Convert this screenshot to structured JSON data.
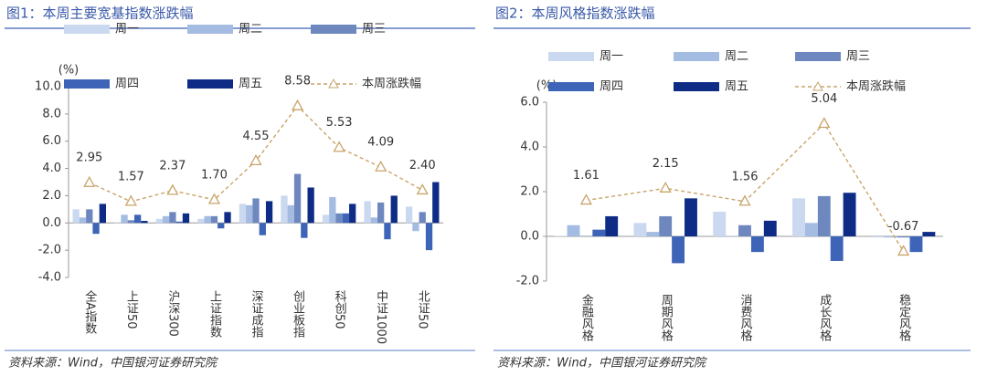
{
  "chart_data": [
    {
      "type": "bar",
      "title": "图1：本周主要宽基指数涨跌幅",
      "ylabel": "(%)",
      "source": "资料来源：Wind，中国银河证券研究院",
      "categories": [
        "全A指数",
        "上证50",
        "沪深300",
        "上证指数",
        "深证成指",
        "创业板指",
        "科创50",
        "中证1000",
        "北证50"
      ],
      "ylim": [
        -4,
        10
      ],
      "yticks": [
        {
          "value": -4,
          "label": "-4.0"
        },
        {
          "value": -2,
          "label": "-2.0"
        },
        {
          "value": 0,
          "label": "0.0"
        },
        {
          "value": 2,
          "label": "2.0"
        },
        {
          "value": 4,
          "label": "4.0"
        },
        {
          "value": 6,
          "label": "6.0"
        },
        {
          "value": 8,
          "label": "8.0"
        },
        {
          "value": 10,
          "label": "10.0"
        }
      ],
      "series": [
        {
          "name": "周一",
          "color": "#cad8f0",
          "values": [
            1.0,
            0.05,
            0.3,
            0.3,
            1.4,
            2.0,
            0.6,
            1.6,
            1.2
          ]
        },
        {
          "name": "周二",
          "color": "#a4bbe2",
          "values": [
            0.4,
            0.6,
            0.5,
            0.5,
            1.3,
            1.3,
            1.9,
            0.4,
            -0.6
          ]
        },
        {
          "name": "周三",
          "color": "#6e88bf",
          "values": [
            1.0,
            0.2,
            0.8,
            0.5,
            1.8,
            3.6,
            0.7,
            1.5,
            0.8
          ]
        },
        {
          "name": "周四",
          "color": "#3d64b6",
          "values": [
            -0.8,
            0.6,
            0.1,
            -0.4,
            -0.9,
            -1.1,
            0.7,
            -1.2,
            -2.0
          ]
        },
        {
          "name": "周五",
          "color": "#0e2c86",
          "values": [
            1.4,
            0.15,
            0.7,
            0.8,
            1.6,
            2.6,
            1.4,
            2.0,
            3.0
          ]
        },
        {
          "name": "本周涨跌幅",
          "type": "line",
          "color": "#c9a46a",
          "values": [
            2.95,
            1.57,
            2.37,
            1.7,
            4.55,
            8.58,
            5.53,
            4.09,
            2.4
          ],
          "value_labels": [
            "2.95",
            "1.57",
            "2.37",
            "1.70",
            "4.55",
            "8.58",
            "5.53",
            "4.09",
            "2.40"
          ]
        }
      ]
    },
    {
      "type": "bar",
      "title": "图2：本周风格指数涨跌幅",
      "ylabel": "(%)",
      "source": "资料来源：Wind，中国银河证券研究院",
      "categories": [
        "金融风格",
        "周期风格",
        "消费风格",
        "成长风格",
        "稳定风格"
      ],
      "ylim": [
        -2,
        6
      ],
      "yticks": [
        {
          "value": -2,
          "label": "-2.0"
        },
        {
          "value": 0,
          "label": "0.0"
        },
        {
          "value": 2,
          "label": "2.0"
        },
        {
          "value": 4,
          "label": "4.0"
        },
        {
          "value": 6,
          "label": "6.0"
        }
      ],
      "series": [
        {
          "name": "周一",
          "color": "#cad8f0",
          "values": [
            0.02,
            0.6,
            1.1,
            1.7,
            -0.05
          ]
        },
        {
          "name": "周二",
          "color": "#a4bbe2",
          "values": [
            0.5,
            0.2,
            0.02,
            0.6,
            -0.05
          ]
        },
        {
          "name": "周三",
          "color": "#6e88bf",
          "values": [
            0.02,
            0.9,
            0.5,
            1.8,
            -0.05
          ]
        },
        {
          "name": "周四",
          "color": "#3d64b6",
          "values": [
            0.3,
            -1.2,
            -0.7,
            -1.1,
            -0.7
          ]
        },
        {
          "name": "周五",
          "color": "#0e2c86",
          "values": [
            0.9,
            1.7,
            0.7,
            1.95,
            0.2
          ]
        },
        {
          "name": "本周涨跌幅",
          "type": "line",
          "color": "#c9a46a",
          "values": [
            1.61,
            2.15,
            1.56,
            5.04,
            -0.67
          ]
        }
      ]
    }
  ]
}
